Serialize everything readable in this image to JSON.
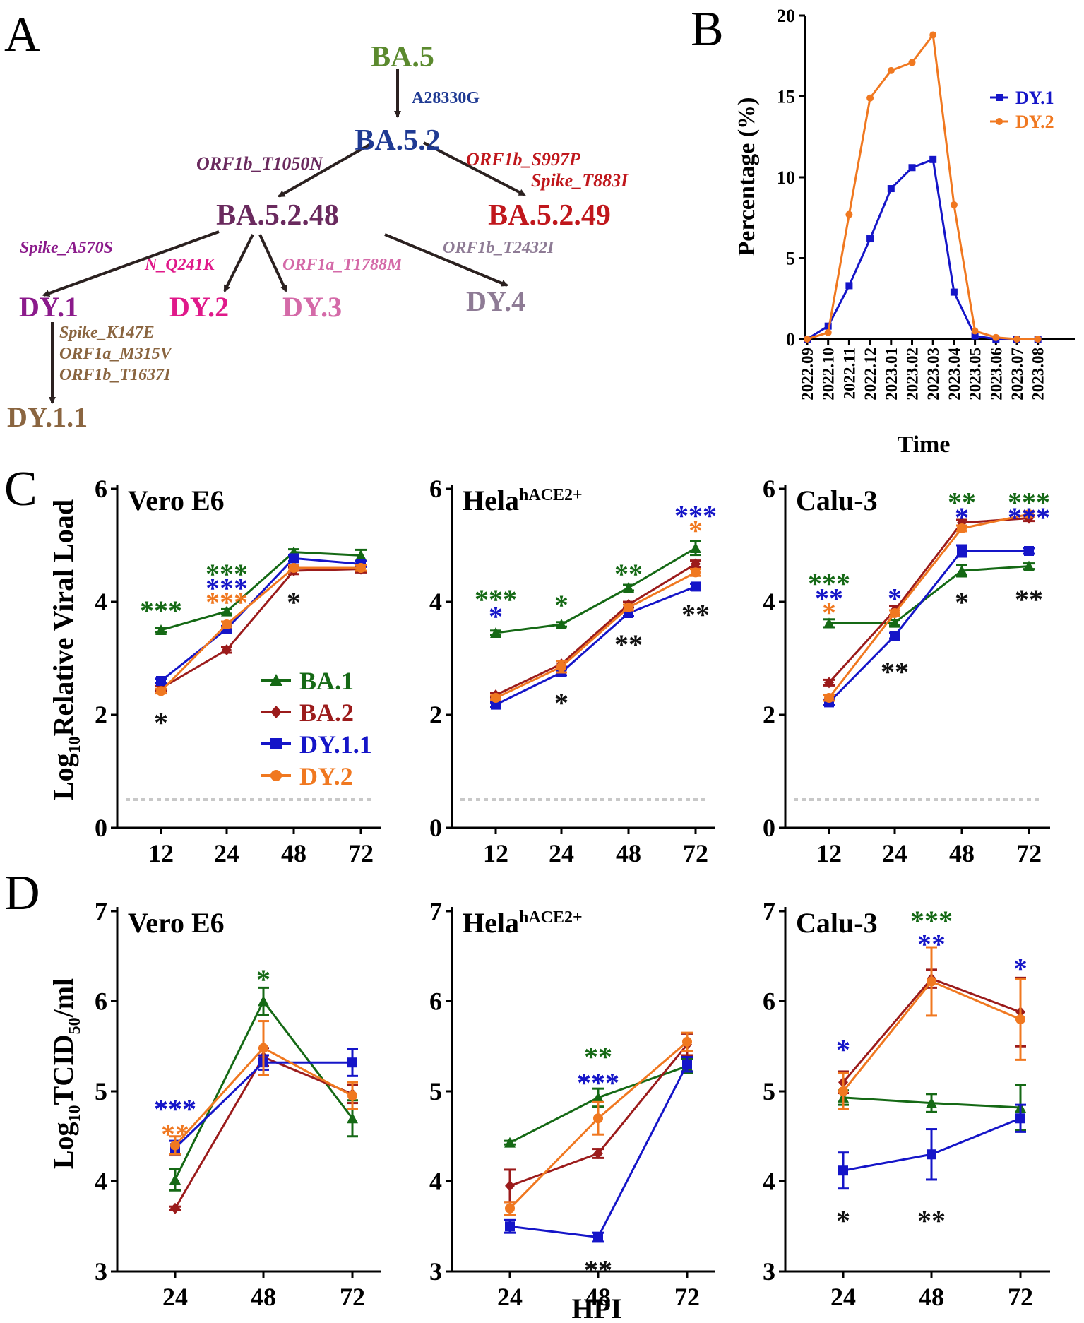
{
  "figure": {
    "panel_labels": [
      "A",
      "B",
      "C",
      "D"
    ]
  },
  "lineage": {
    "nodes": [
      {
        "id": "BA5",
        "label": "BA.5",
        "color": "#5b8a2e"
      },
      {
        "id": "BA52",
        "label": "BA.5.2",
        "color": "#1f3a93"
      },
      {
        "id": "BA5248",
        "label": "BA.5.2.48",
        "color": "#6a2a5e"
      },
      {
        "id": "BA5249",
        "label": "BA.5.2.49",
        "color": "#c0171c"
      },
      {
        "id": "DY1",
        "label": "DY.1",
        "color": "#8b1a8b"
      },
      {
        "id": "DY2",
        "label": "DY.2",
        "color": "#e0198a"
      },
      {
        "id": "DY3",
        "label": "DY.3",
        "color": "#d46aa8"
      },
      {
        "id": "DY4",
        "label": "DY.4",
        "color": "#8e7b95"
      },
      {
        "id": "DY11",
        "label": "DY.1.1",
        "color": "#8a6540"
      }
    ],
    "mutations": [
      {
        "id": "m1",
        "label": "A28330G",
        "color": "#1f3a93"
      },
      {
        "id": "m2",
        "label": "ORF1b_T1050N",
        "color": "#6a2a5e"
      },
      {
        "id": "m3",
        "label": "ORF1b_S997P",
        "color": "#c0171c"
      },
      {
        "id": "m4",
        "label": "Spike_T883I",
        "color": "#c0171c"
      },
      {
        "id": "m5",
        "label": "Spike_A570S",
        "color": "#8b1a8b"
      },
      {
        "id": "m6",
        "label": "N_Q241K",
        "color": "#e0198a"
      },
      {
        "id": "m7",
        "label": "ORF1a_T1788M",
        "color": "#d46aa8"
      },
      {
        "id": "m8",
        "label": "ORF1b_T2432I",
        "color": "#8e7b95"
      },
      {
        "id": "m9",
        "label": "Spike_K147E",
        "color": "#8a6540"
      },
      {
        "id": "m10",
        "label": "ORF1a_M315V",
        "color": "#8a6540"
      },
      {
        "id": "m11",
        "label": "ORF1b_T1637I",
        "color": "#8a6540"
      }
    ]
  },
  "chart_data": [
    {
      "panel": "B",
      "type": "line",
      "xlabel": "Time",
      "ylabel": "Percentage (%)",
      "ylim": [
        0,
        20
      ],
      "yticks": [
        "0",
        "5",
        "10",
        "15",
        "20"
      ],
      "categories": [
        "2022.09",
        "2022.10",
        "2022.11",
        "2022.12",
        "2023.01",
        "2023.02",
        "2023.03",
        "2023.04",
        "2023.05",
        "2023.06",
        "2023.07",
        "2023.08"
      ],
      "legend_position": "top-right",
      "series": [
        {
          "name": "DY.1",
          "color": "#1515c8",
          "marker": "square",
          "values": [
            0,
            0.8,
            3.3,
            6.2,
            9.3,
            10.6,
            11.1,
            2.9,
            0.2,
            0,
            0,
            0
          ]
        },
        {
          "name": "DY.2",
          "color": "#f07820",
          "marker": "circle",
          "values": [
            0,
            0.4,
            7.7,
            14.9,
            16.6,
            17.1,
            18.8,
            8.3,
            0.5,
            0.1,
            0,
            0
          ]
        }
      ]
    },
    {
      "panel": "C",
      "type": "line",
      "ylabel_main": "Log",
      "ylabel_sub": "10",
      "ylabel_rest": "Relative Viral Load",
      "ylim": [
        0,
        6
      ],
      "yticks": [
        "0",
        "2",
        "4",
        "6"
      ],
      "categories": [
        "12",
        "24",
        "48",
        "72"
      ],
      "detection_limit": 0.5,
      "legend": [
        {
          "name": "BA.1",
          "color": "#156915",
          "marker": "triangle"
        },
        {
          "name": "BA.2",
          "color": "#9b1b1b",
          "marker": "diamond"
        },
        {
          "name": "DY.1.1",
          "color": "#1515c8",
          "marker": "square"
        },
        {
          "name": "DY.2",
          "color": "#f07820",
          "marker": "circle"
        }
      ],
      "subplots": [
        {
          "title": "Vero E6",
          "title_sup": "",
          "series": [
            {
              "name": "BA.1",
              "values": [
                3.5,
                3.83,
                4.88,
                4.82
              ],
              "errors": [
                0.04,
                0.04,
                0.05,
                0.1
              ]
            },
            {
              "name": "BA.2",
              "values": [
                2.47,
                3.15,
                4.55,
                4.58
              ],
              "errors": [
                0.04,
                0.05,
                0.06,
                0.06
              ]
            },
            {
              "name": "DY.1.1",
              "values": [
                2.6,
                3.52,
                4.77,
                4.67
              ],
              "errors": [
                0.04,
                0.05,
                0.05,
                0.05
              ]
            },
            {
              "name": "DY.2",
              "values": [
                2.42,
                3.6,
                4.6,
                4.6
              ],
              "errors": [
                0.04,
                0.05,
                0.05,
                0.05
              ]
            }
          ],
          "annotations": [
            {
              "x": 0,
              "y": 3.9,
              "text": "***",
              "color": "#156915"
            },
            {
              "x": 0,
              "y": 1.92,
              "text": "*",
              "color": "#111111"
            },
            {
              "x": 1,
              "y": 4.55,
              "text": "***",
              "color": "#156915"
            },
            {
              "x": 1,
              "y": 4.3,
              "text": "***",
              "color": "#1515c8"
            },
            {
              "x": 1,
              "y": 4.05,
              "text": "***",
              "color": "#f07820"
            },
            {
              "x": 2,
              "y": 4.05,
              "text": "*",
              "color": "#111111"
            }
          ]
        },
        {
          "title": "Hela",
          "title_sup": "hACE2+",
          "series": [
            {
              "name": "BA.1",
              "values": [
                3.45,
                3.6,
                4.25,
                4.95
              ],
              "errors": [
                0.04,
                0.04,
                0.05,
                0.12
              ]
            },
            {
              "name": "BA.2",
              "values": [
                2.35,
                2.9,
                3.95,
                4.67
              ],
              "errors": [
                0.04,
                0.05,
                0.05,
                0.06
              ]
            },
            {
              "name": "DY.1.1",
              "values": [
                2.18,
                2.75,
                3.8,
                4.27
              ],
              "errors": [
                0.04,
                0.05,
                0.05,
                0.05
              ]
            },
            {
              "name": "DY.2",
              "values": [
                2.3,
                2.85,
                3.9,
                4.52
              ],
              "errors": [
                0.04,
                0.1,
                0.05,
                0.06
              ]
            }
          ],
          "annotations": [
            {
              "x": 0,
              "y": 4.1,
              "text": "***",
              "color": "#156915"
            },
            {
              "x": 0,
              "y": 3.8,
              "text": "*",
              "color": "#1515c8"
            },
            {
              "x": 1,
              "y": 4.0,
              "text": "*",
              "color": "#156915"
            },
            {
              "x": 1,
              "y": 2.27,
              "text": "*",
              "color": "#111111"
            },
            {
              "x": 2,
              "y": 4.55,
              "text": "**",
              "color": "#156915"
            },
            {
              "x": 2,
              "y": 3.3,
              "text": "**",
              "color": "#111111"
            },
            {
              "x": 3,
              "y": 5.58,
              "text": "***",
              "color": "#1515c8"
            },
            {
              "x": 3,
              "y": 5.32,
              "text": "*",
              "color": "#f07820"
            },
            {
              "x": 3,
              "y": 3.83,
              "text": "**",
              "color": "#111111"
            }
          ]
        },
        {
          "title": "Calu-3",
          "title_sup": "",
          "series": [
            {
              "name": "BA.1",
              "values": [
                3.62,
                3.63,
                4.55,
                4.63
              ],
              "errors": [
                0.07,
                0.05,
                0.1,
                0.05
              ]
            },
            {
              "name": "BA.2",
              "values": [
                2.57,
                3.85,
                5.4,
                5.48
              ],
              "errors": [
                0.05,
                0.08,
                0.05,
                0.05
              ]
            },
            {
              "name": "DY.1.1",
              "values": [
                2.22,
                3.4,
                4.9,
                4.9
              ],
              "errors": [
                0.05,
                0.05,
                0.1,
                0.05
              ]
            },
            {
              "name": "DY.2",
              "values": [
                2.3,
                3.8,
                5.3,
                5.55
              ],
              "errors": [
                0.05,
                0.05,
                0.05,
                0.05
              ]
            }
          ],
          "annotations": [
            {
              "x": 0,
              "y": 4.38,
              "text": "***",
              "color": "#156915"
            },
            {
              "x": 0,
              "y": 4.12,
              "text": "**",
              "color": "#1515c8"
            },
            {
              "x": 0,
              "y": 3.87,
              "text": "*",
              "color": "#f07820"
            },
            {
              "x": 1,
              "y": 4.12,
              "text": "*",
              "color": "#1515c8"
            },
            {
              "x": 1,
              "y": 2.82,
              "text": "**",
              "color": "#111111"
            },
            {
              "x": 2,
              "y": 5.82,
              "text": "**",
              "color": "#156915"
            },
            {
              "x": 2,
              "y": 5.55,
              "text": "*",
              "color": "#1515c8"
            },
            {
              "x": 2,
              "y": 4.05,
              "text": "*",
              "color": "#111111"
            },
            {
              "x": 3,
              "y": 5.82,
              "text": "***",
              "color": "#156915"
            },
            {
              "x": 3,
              "y": 5.55,
              "text": "***",
              "color": "#1515c8"
            },
            {
              "x": 3,
              "y": 4.1,
              "text": "**",
              "color": "#111111"
            }
          ]
        }
      ]
    },
    {
      "panel": "D",
      "type": "line",
      "ylabel_main": "Log",
      "ylabel_sub": "10",
      "ylabel_rest": "TCID",
      "ylabel_sub2": "50",
      "ylabel_rest2": "/ml",
      "xlabel": "HPI",
      "ylim": [
        3,
        7
      ],
      "yticks": [
        "3",
        "4",
        "5",
        "6",
        "7"
      ],
      "categories": [
        "24",
        "48",
        "72"
      ],
      "subplots": [
        {
          "title": "Vero E6",
          "title_sup": "",
          "series": [
            {
              "name": "BA.1",
              "values": [
                4.02,
                6.0,
                4.7
              ],
              "errors": [
                0.12,
                0.15,
                0.2
              ]
            },
            {
              "name": "BA.2",
              "values": [
                3.7,
                5.38,
                4.97
              ],
              "errors": [
                0.02,
                0.1,
                0.1
              ]
            },
            {
              "name": "DY.1.1",
              "values": [
                4.37,
                5.32,
                5.32
              ],
              "errors": [
                0.08,
                0.08,
                0.15
              ]
            },
            {
              "name": "DY.2",
              "values": [
                4.4,
                5.48,
                4.95
              ],
              "errors": [
                0.1,
                0.3,
                0.15
              ]
            }
          ],
          "annotations": [
            {
              "x": 0,
              "y": 4.84,
              "text": "***",
              "color": "#1515c8"
            },
            {
              "x": 0,
              "y": 4.56,
              "text": "**",
              "color": "#f07820"
            },
            {
              "x": 1,
              "y": 6.28,
              "text": "*",
              "color": "#156915"
            }
          ]
        },
        {
          "title": "Hela",
          "title_sup": "hACE2+",
          "series": [
            {
              "name": "BA.1",
              "values": [
                4.43,
                4.93,
                5.28
              ],
              "errors": [
                0.02,
                0.1,
                0.08
              ]
            },
            {
              "name": "BA.2",
              "values": [
                3.95,
                4.31,
                5.52
              ],
              "errors": [
                0.18,
                0.05,
                0.12
              ]
            },
            {
              "name": "DY.1.1",
              "values": [
                3.5,
                3.38,
                5.3
              ],
              "errors": [
                0.07,
                0.05,
                0.08
              ]
            },
            {
              "name": "DY.2",
              "values": [
                3.7,
                4.7,
                5.55
              ],
              "errors": [
                0.07,
                0.18,
                0.1
              ]
            }
          ],
          "annotations": [
            {
              "x": 1,
              "y": 5.42,
              "text": "**",
              "color": "#156915"
            },
            {
              "x": 1,
              "y": 5.13,
              "text": "***",
              "color": "#1515c8"
            },
            {
              "x": 1,
              "y": 3.05,
              "text": "**",
              "color": "#111111"
            }
          ]
        },
        {
          "title": "Calu-3",
          "title_sup": "",
          "series": [
            {
              "name": "BA.1",
              "values": [
                4.93,
                4.87,
                4.82
              ],
              "errors": [
                0.08,
                0.1,
                0.25
              ]
            },
            {
              "name": "BA.2",
              "values": [
                5.1,
                6.25,
                5.88
              ],
              "errors": [
                0.12,
                0.1,
                0.38
              ]
            },
            {
              "name": "DY.1.1",
              "values": [
                4.12,
                4.3,
                4.7
              ],
              "errors": [
                0.2,
                0.28,
                0.15
              ]
            },
            {
              "name": "DY.2",
              "values": [
                5.0,
                6.22,
                5.8
              ],
              "errors": [
                0.2,
                0.38,
                0.45
              ]
            }
          ],
          "annotations": [
            {
              "x": 0,
              "y": 5.5,
              "text": "*",
              "color": "#1515c8"
            },
            {
              "x": 0,
              "y": 3.6,
              "text": "*",
              "color": "#111111"
            },
            {
              "x": 1,
              "y": 6.93,
              "text": "***",
              "color": "#156915"
            },
            {
              "x": 1,
              "y": 6.67,
              "text": "**",
              "color": "#1515c8"
            },
            {
              "x": 1,
              "y": 3.6,
              "text": "**",
              "color": "#111111"
            },
            {
              "x": 2,
              "y": 6.4,
              "text": "*",
              "color": "#1515c8"
            }
          ]
        }
      ]
    }
  ],
  "colors": {
    "BA.1": "#156915",
    "BA.2": "#9b1b1b",
    "DY.1.1": "#1515c8",
    "DY.2": "#f07820",
    "DY.1": "#1515c8",
    "limit_line": "#c8c8c8"
  }
}
